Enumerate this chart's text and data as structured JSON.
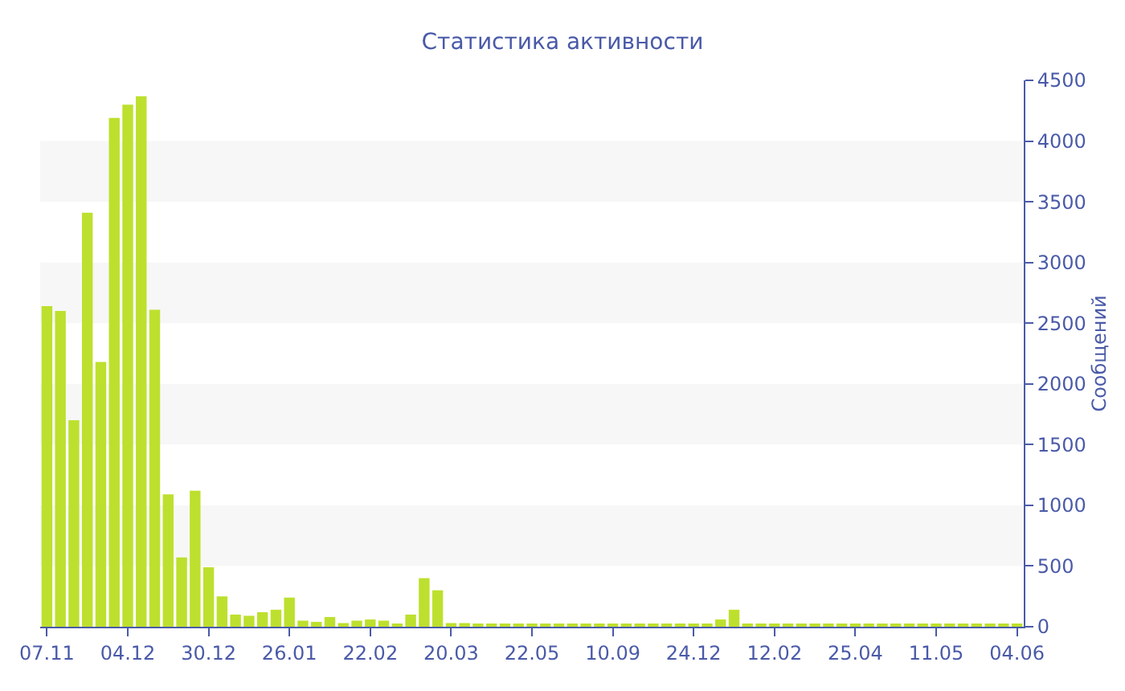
{
  "chart_data": {
    "type": "bar",
    "title": "Статистика активности",
    "ylabel": "Сообщений",
    "categories": [
      "07.11",
      null,
      null,
      null,
      null,
      null,
      "04.12",
      null,
      null,
      null,
      null,
      null,
      "30.12",
      null,
      null,
      null,
      null,
      null,
      "26.01",
      null,
      null,
      null,
      null,
      null,
      "22.02",
      null,
      null,
      null,
      null,
      null,
      "20.03",
      null,
      null,
      null,
      null,
      null,
      "22.05",
      null,
      null,
      null,
      null,
      null,
      "10.09",
      null,
      null,
      null,
      null,
      null,
      "24.12",
      null,
      null,
      null,
      null,
      null,
      "12.02",
      null,
      null,
      null,
      null,
      null,
      "25.04",
      null,
      null,
      null,
      null,
      null,
      "11.05",
      null,
      null,
      null,
      null,
      null,
      "04.06"
    ],
    "values": [
      2640,
      2600,
      1700,
      3410,
      2180,
      4190,
      4300,
      4370,
      2610,
      1090,
      570,
      1120,
      490,
      250,
      100,
      90,
      120,
      140,
      240,
      50,
      40,
      80,
      30,
      50,
      60,
      50,
      20,
      100,
      400,
      300,
      30,
      30,
      20,
      20,
      20,
      20,
      20,
      20,
      20,
      20,
      20,
      20,
      20,
      20,
      20,
      20,
      20,
      20,
      20,
      20,
      60,
      140,
      20,
      20,
      20,
      20,
      20,
      20,
      20,
      20,
      20,
      20,
      20,
      20,
      20,
      20,
      20,
      20,
      20,
      20,
      20,
      20,
      20
    ],
    "color": "#bde02e",
    "ylim": [
      0,
      4500
    ],
    "yticks": [
      0,
      500,
      1000,
      1500,
      2000,
      2500,
      3000,
      3500,
      4000,
      4500
    ],
    "bands": [
      {
        "axis": "y",
        "from": 500,
        "to": 1000,
        "color": "#f7f7f7"
      },
      {
        "axis": "y",
        "from": 1500,
        "to": 2000,
        "color": "#f7f7f7"
      },
      {
        "axis": "y",
        "from": 2500,
        "to": 3000,
        "color": "#f7f7f7"
      },
      {
        "axis": "y",
        "from": 3500,
        "to": 4000,
        "color": "#f7f7f7"
      }
    ],
    "grid": false
  }
}
